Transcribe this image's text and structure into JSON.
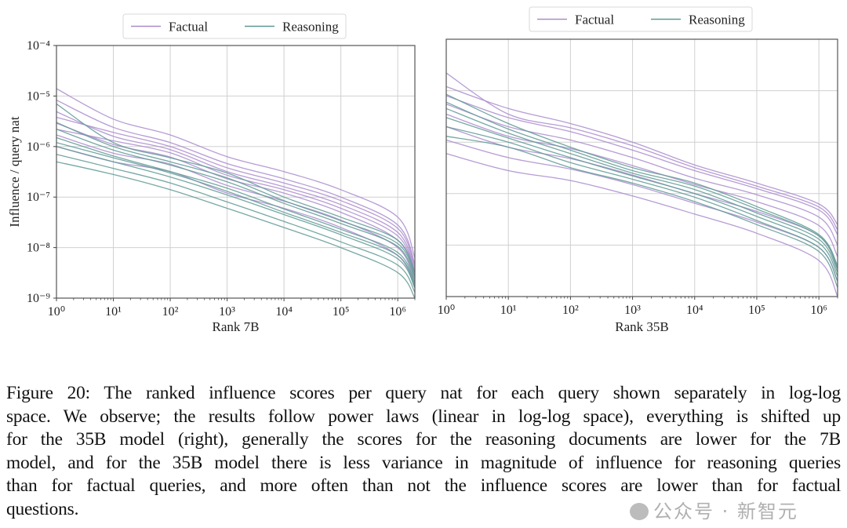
{
  "chart_data": [
    {
      "type": "line",
      "xlabel": "Rank 7B",
      "ylabel": "Influence / query nat",
      "xscale": "log",
      "yscale": "log",
      "xlim": [
        1,
        2000000
      ],
      "ylim": [
        1e-09,
        0.0001
      ],
      "grid": true,
      "legend": {
        "placement": "top-center",
        "entries": [
          "Factual",
          "Reasoning"
        ]
      },
      "x_tick_labels": [
        "10⁰",
        "10¹",
        "10²",
        "10³",
        "10⁴",
        "10⁵",
        "10⁶"
      ],
      "y_tick_labels": [
        "10⁻⁴",
        "10⁻⁵",
        "10⁻⁶",
        "10⁻⁷",
        "10⁻⁸",
        "10⁻⁹"
      ],
      "x": [
        1,
        10,
        100,
        1000,
        10000,
        100000,
        1000000,
        2000000
      ],
      "series": [
        {
          "group": "Factual",
          "values": [
            1e-06,
            5e-07,
            3.2e-07,
            1.2e-07,
            6e-08,
            2.5e-08,
            7e-09,
            1.6e-09
          ]
        },
        {
          "group": "Factual",
          "values": [
            1.7e-06,
            7.4e-07,
            4.5e-07,
            1.7e-07,
            8.3e-08,
            3.5e-08,
            1e-08,
            2.1e-09
          ]
        },
        {
          "group": "Factual",
          "values": [
            2.2e-06,
            1.3e-06,
            7.5e-07,
            2.7e-07,
            1.4e-07,
            6e-08,
            1.7e-08,
            3.2e-09
          ]
        },
        {
          "group": "Factual",
          "values": [
            2.9e-06,
            1.1e-06,
            6.2e-07,
            2.3e-07,
            1.2e-07,
            5e-08,
            1.4e-08,
            2.8e-09
          ]
        },
        {
          "group": "Factual",
          "values": [
            3.8e-06,
            1.9e-06,
            1e-06,
            3.8e-07,
            1.9e-07,
            8.5e-08,
            2.4e-08,
            4.2e-09
          ]
        },
        {
          "group": "Factual",
          "values": [
            4.9e-06,
            1.6e-06,
            8.7e-07,
            3.2e-07,
            1.6e-07,
            7.1e-08,
            2e-08,
            3.6e-09
          ]
        },
        {
          "group": "Factual",
          "values": [
            8.3e-06,
            2.4e-06,
            1.2e-06,
            4.6e-07,
            2.3e-07,
            1e-07,
            2.8e-08,
            4.8e-09
          ]
        },
        {
          "group": "Factual",
          "values": [
            1.4e-05,
            3.5e-06,
            1.7e-06,
            6.3e-07,
            3.2e-07,
            1.4e-07,
            4e-08,
            6.3e-09
          ]
        },
        {
          "group": "Reasoning",
          "values": [
            5e-07,
            2.8e-07,
            1.4e-07,
            6e-08,
            2.5e-08,
            1e-08,
            3.2e-09,
            1e-09
          ]
        },
        {
          "group": "Reasoning",
          "values": [
            7e-07,
            3.7e-07,
            1.9e-07,
            8e-08,
            3.3e-08,
            1.3e-08,
            4.5e-09,
            1.3e-09
          ]
        },
        {
          "group": "Reasoning",
          "values": [
            1e-06,
            5e-07,
            2.5e-07,
            1.1e-07,
            4.5e-08,
            1.8e-08,
            6e-09,
            1.6e-09
          ]
        },
        {
          "group": "Reasoning",
          "values": [
            1.2e-06,
            6e-07,
            3e-07,
            1.3e-07,
            5e-08,
            2e-08,
            7e-09,
            1.8e-09
          ]
        },
        {
          "group": "Reasoning",
          "values": [
            1.5e-06,
            6.5e-07,
            3.2e-07,
            1.5e-07,
            5.8e-08,
            2.3e-08,
            8e-09,
            2e-09
          ]
        },
        {
          "group": "Reasoning",
          "values": [
            2.2e-06,
            8.5e-07,
            4.3e-07,
            2e-07,
            7.5e-08,
            3e-08,
            1.05e-08,
            2.4e-09
          ]
        },
        {
          "group": "Reasoning",
          "values": [
            3e-06,
            1e-06,
            5e-07,
            2.4e-07,
            8.5e-08,
            3.4e-08,
            1.2e-08,
            2.7e-09
          ]
        },
        {
          "group": "Reasoning",
          "values": [
            7e-06,
            1.2e-06,
            6e-07,
            3e-07,
            1e-07,
            4e-08,
            1.4e-08,
            3.2e-09
          ]
        }
      ]
    },
    {
      "type": "line",
      "xlabel": "Rank 35B",
      "ylabel": "",
      "xscale": "log",
      "yscale": "log",
      "xlim": [
        1,
        2000000
      ],
      "ylim": [
        1e-09,
        0.0001
      ],
      "grid": true,
      "legend": {
        "placement": "top-center",
        "entries": [
          "Factual",
          "Reasoning"
        ]
      },
      "x_tick_labels": [
        "10⁰",
        "10¹",
        "10²",
        "10³",
        "10⁴",
        "10⁵",
        "10⁶"
      ],
      "y_tick_labels": [],
      "x": [
        1,
        10,
        100,
        1000,
        10000,
        100000,
        1000000,
        2000000
      ],
      "series": [
        {
          "group": "Factual",
          "values": [
            6e-07,
            2.8e-07,
            1.8e-07,
            9e-08,
            4e-08,
            1.7e-08,
            5e-09,
            1e-09
          ]
        },
        {
          "group": "Factual",
          "values": [
            1.1e-06,
            5e-07,
            3e-07,
            1.5e-07,
            6.5e-08,
            2.8e-08,
            9e-09,
            2e-09
          ]
        },
        {
          "group": "Factual",
          "values": [
            2e-06,
            8e-07,
            4.8e-07,
            2.3e-07,
            1e-07,
            4.5e-08,
            1.5e-08,
            3.5e-09
          ]
        },
        {
          "group": "Factual",
          "values": [
            3.5e-06,
            1.3e-06,
            7.5e-07,
            3.5e-07,
            1.5e-07,
            7e-08,
            2.4e-08,
            6e-09
          ]
        },
        {
          "group": "Factual",
          "values": [
            5.5e-06,
            2e-06,
            1.1e-06,
            5e-07,
            2e-07,
            9.5e-08,
            3.5e-08,
            1e-08
          ]
        },
        {
          "group": "Factual",
          "values": [
            8e-06,
            3e-06,
            1.6e-06,
            7e-07,
            2.8e-07,
            1.25e-07,
            4.8e-08,
            1.6e-08
          ]
        },
        {
          "group": "Factual",
          "values": [
            1.2e-05,
            4.5e-06,
            2.3e-06,
            1e-06,
            3.6e-07,
            1.6e-07,
            6.3e-08,
            2.5e-08
          ]
        },
        {
          "group": "Factual",
          "values": [
            2.2e-05,
            3.5e-06,
            1.9e-06,
            8.5e-07,
            3.2e-07,
            1.4e-07,
            5.5e-08,
            2e-08
          ]
        },
        {
          "group": "Reasoning",
          "values": [
            1.3e-06,
            8e-07,
            3.2e-07,
            1.6e-07,
            7e-08,
            2.5e-08,
            7.5e-09,
            1.5e-09
          ]
        },
        {
          "group": "Reasoning",
          "values": [
            2e-06,
            1e-06,
            4e-07,
            1.9e-07,
            8.5e-08,
            3e-08,
            9e-09,
            2e-09
          ]
        },
        {
          "group": "Reasoning",
          "values": [
            3e-06,
            1.2e-06,
            5e-07,
            2.2e-07,
            1e-07,
            3.6e-08,
            1.1e-08,
            2.5e-09
          ]
        },
        {
          "group": "Reasoning",
          "values": [
            4.5e-06,
            1.5e-06,
            6e-07,
            2.5e-07,
            1.2e-07,
            4.2e-08,
            1.3e-08,
            3e-09
          ]
        },
        {
          "group": "Reasoning",
          "values": [
            6e-06,
            1.8e-06,
            7e-07,
            2.8e-07,
            1.4e-07,
            5e-08,
            1.5e-08,
            3.5e-09
          ]
        },
        {
          "group": "Reasoning",
          "values": [
            8.5e-06,
            2.3e-06,
            8e-07,
            3.2e-07,
            1.6e-07,
            5.6e-08,
            1.6e-08,
            4e-09
          ]
        }
      ]
    }
  ],
  "colors": {
    "Factual": "#a98bce",
    "Reasoning": "#5e9994",
    "grid": "#d0d0d0",
    "frame": "#555555"
  },
  "caption": {
    "lines": [
      "Figure 20: The ranked influence scores per query nat for each query shown separately in log-log",
      "space. We observe; the results follow power laws (linear in log-log space), everything is shifted up",
      "for the 35B model (right), generally the scores for the reasoning documents are lower for the 7B",
      "model, and for the 35B model there is less variance in magnitude of influence for reasoning queries",
      "than for factual queries, and more often than not the influence scores are lower than for factual",
      "questions."
    ]
  },
  "watermark": "公众号 · 新智元"
}
